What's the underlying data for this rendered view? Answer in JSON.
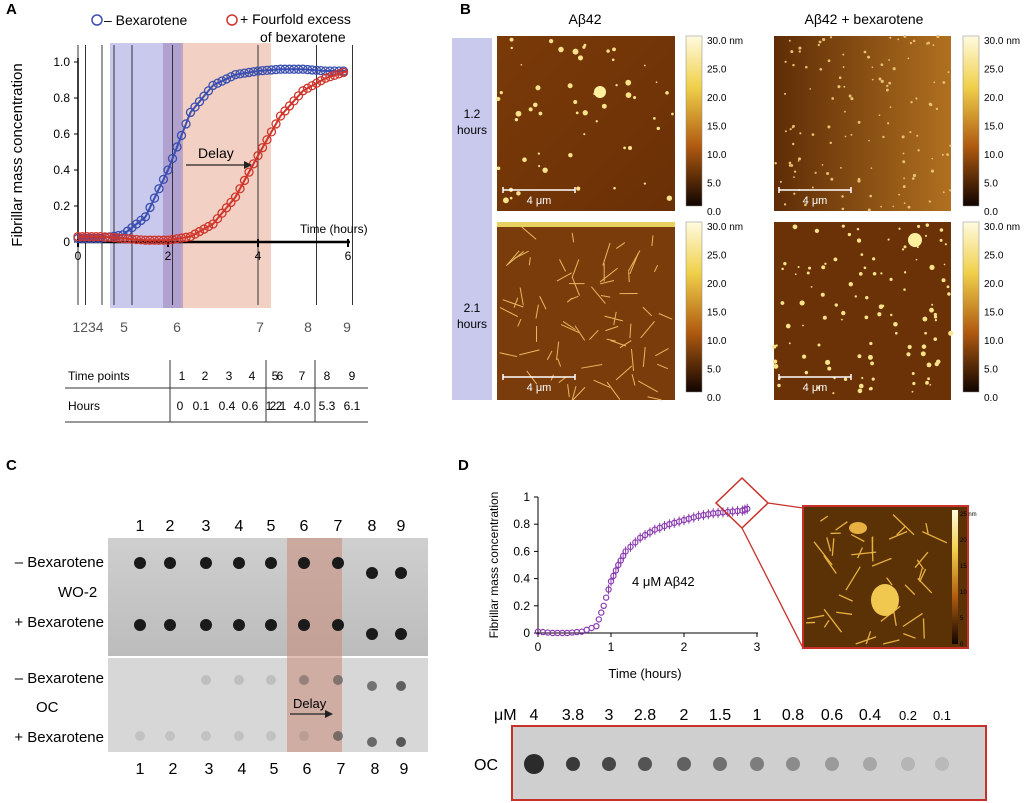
{
  "panels": [
    "A",
    "B",
    "C",
    "D"
  ],
  "panelA": {
    "legend_minus": "– Bexarotene",
    "legend_plus_1": "+ Fourfold excess",
    "legend_plus_2": "of bexarotene",
    "ylabel": "Fibrillar mass concentration",
    "xlabel": "Time (hours)",
    "delay": "Delay",
    "yticks": [
      "0",
      "0.2",
      "0.4",
      "0.6",
      "0.8",
      "1.0"
    ],
    "xticks": [
      "0",
      "2",
      "4",
      "6"
    ],
    "tp_labels": [
      "1234",
      "5",
      "6",
      "7",
      "8",
      "9"
    ],
    "table": {
      "row1_head": "Time points",
      "row1": [
        "1",
        "2",
        "3",
        "4",
        "5",
        "6",
        "7",
        "8",
        "9"
      ],
      "row2_head": "Hours",
      "row2": [
        "0",
        "0.1",
        "0.4",
        "0.6",
        "1.2",
        "2.1",
        "4.0",
        "5.3",
        "6.1"
      ]
    },
    "colors": {
      "minus": "#3a4fb0",
      "plus": "#d0352b",
      "band_blue": "#c9c9ee",
      "band_red": "#f0c8b8"
    }
  },
  "panelB": {
    "col1": "Aβ42",
    "col2": "Aβ42 + bexarotene",
    "row1": [
      "1.2",
      "hours"
    ],
    "row2": [
      "2.1",
      "hours"
    ],
    "scalebar": "4 μm",
    "colorbar": [
      "30.0 nm",
      "25.0",
      "20.0",
      "15.0",
      "10.0",
      "5.0",
      "0.0"
    ]
  },
  "panelC": {
    "top_numbers": [
      "1",
      "2",
      "3",
      "4",
      "5",
      "6",
      "7",
      "8",
      "9"
    ],
    "bottom_numbers": [
      "1",
      "2",
      "3",
      "4",
      "5",
      "6",
      "7",
      "8",
      "9"
    ],
    "labels": [
      "– Bexarotene",
      "WO-2",
      "+ Bexarotene",
      "– Bexarotene",
      "OC",
      "+ Bexarotene"
    ],
    "delay": "Delay"
  },
  "panelD": {
    "ylabel": "Fibrillar mass concentration",
    "xlabel": "Time (hours)",
    "annotation": "4 μM Aβ42",
    "yticks": [
      "0",
      "0.2",
      "0.4",
      "0.6",
      "0.8",
      "1"
    ],
    "xticks": [
      "0",
      "1",
      "2",
      "3"
    ],
    "inset_ticks": [
      "25 nm",
      "20",
      "15",
      "10",
      "5",
      "0"
    ],
    "um_label": "μM",
    "concentrations": [
      "4",
      "3.8",
      "3",
      "2.8",
      "2",
      "1.5",
      "1",
      "0.8",
      "0.6",
      "0.4",
      "0.2",
      "0.1"
    ],
    "oc_label": "OC",
    "color": "#8a3bb0"
  },
  "chart_data": [
    {
      "type": "scatter",
      "series": [
        {
          "name": "– Bexarotene",
          "x": [
            0,
            0.5,
            1.0,
            1.5,
            2.0,
            2.5,
            3.0,
            3.5,
            4.0,
            4.5,
            5.0,
            5.5,
            6.0
          ],
          "y": [
            0.02,
            0.02,
            0.04,
            0.14,
            0.4,
            0.72,
            0.87,
            0.93,
            0.95,
            0.96,
            0.96,
            0.95,
            0.95
          ]
        },
        {
          "name": "+ Fourfold excess of bexarotene",
          "x": [
            0,
            0.5,
            1.0,
            1.5,
            2.0,
            2.5,
            3.0,
            3.5,
            4.0,
            4.5,
            5.0,
            5.5,
            6.0
          ],
          "y": [
            0.03,
            0.03,
            0.02,
            0.01,
            0.01,
            0.03,
            0.1,
            0.25,
            0.48,
            0.7,
            0.84,
            0.91,
            0.95
          ]
        }
      ],
      "xlabel": "Time (hours)",
      "ylabel": "Fibrillar mass concentration",
      "xlim": [
        0,
        6
      ],
      "ylim": [
        0,
        1.0
      ]
    },
    {
      "type": "scatter",
      "series": [
        {
          "name": "4 μM Aβ42",
          "x": [
            0,
            0.2,
            0.4,
            0.6,
            0.8,
            0.9,
            1.0,
            1.1,
            1.2,
            1.4,
            1.6,
            1.8,
            2.0,
            2.2,
            2.4,
            2.6,
            2.8,
            2.9
          ],
          "y": [
            0.01,
            0.0,
            0.0,
            0.01,
            0.05,
            0.2,
            0.38,
            0.5,
            0.6,
            0.7,
            0.76,
            0.8,
            0.83,
            0.86,
            0.88,
            0.89,
            0.9,
            0.92
          ]
        }
      ],
      "xlabel": "Time (hours)",
      "ylabel": "Fibrillar mass concentration",
      "xlim": [
        0,
        3
      ],
      "ylim": [
        0,
        1
      ]
    }
  ]
}
